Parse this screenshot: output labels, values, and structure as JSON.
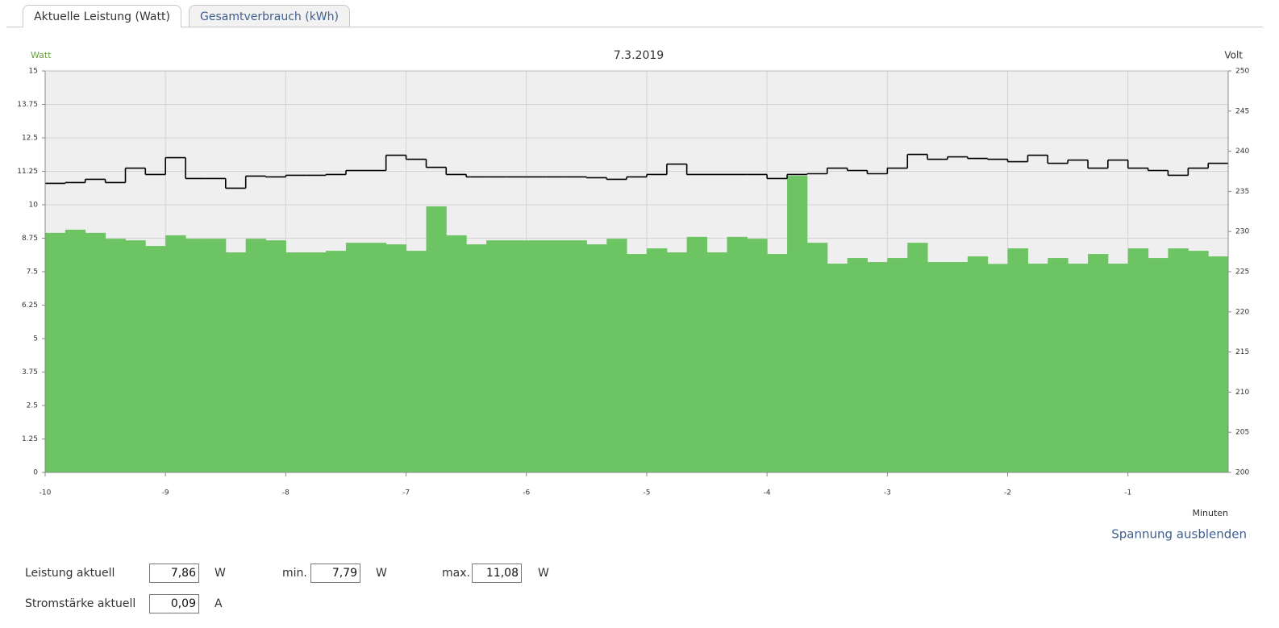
{
  "tabs": [
    "Aktuelle Leistung (Watt)",
    "Gesamtverbrauch (kWh)"
  ],
  "chart_data": {
    "type": "bar",
    "title": "7.3.2019",
    "ylabel": "Watt",
    "y2label": "Volt",
    "xlabel": "Minuten",
    "x": [
      -10,
      -9.833,
      -9.667,
      -9.5,
      -9.333,
      -9.167,
      -9,
      -8.833,
      -8.667,
      -8.5,
      -8.333,
      -8.167,
      -8,
      -7.833,
      -7.667,
      -7.5,
      -7.333,
      -7.167,
      -7,
      -6.833,
      -6.667,
      -6.5,
      -6.333,
      -6.167,
      -6,
      -5.833,
      -5.667,
      -5.5,
      -5.333,
      -5.167,
      -5,
      -4.833,
      -4.667,
      -4.5,
      -4.333,
      -4.167,
      -4,
      -3.833,
      -3.667,
      -3.5,
      -3.333,
      -3.167,
      -3,
      -2.833,
      -2.667,
      -2.5,
      -2.333,
      -2.167,
      -2,
      -1.833,
      -1.667,
      -1.5,
      -1.333,
      -1.167,
      -1,
      -0.833,
      -0.667,
      -0.5,
      -0.333
    ],
    "series": [
      {
        "color": "#6cc462",
        "values": [
          8.95,
          9.07,
          8.95,
          8.73,
          8.67,
          8.46,
          8.86,
          8.73,
          8.73,
          8.22,
          8.73,
          8.67,
          8.22,
          8.22,
          8.28,
          8.58,
          8.58,
          8.52,
          8.28,
          9.94,
          8.86,
          8.52,
          8.67,
          8.67,
          8.67,
          8.67,
          8.67,
          8.52,
          8.73,
          8.16,
          8.37,
          8.22,
          8.8,
          8.22,
          8.8,
          8.73,
          8.16,
          11.08,
          8.58,
          7.8,
          8.01,
          7.86,
          8.01,
          8.58,
          7.86,
          7.86,
          8.07,
          7.79,
          8.37,
          7.8,
          8.01,
          7.8,
          8.16,
          7.8,
          8.37,
          8.01,
          8.37,
          8.28,
          8.07
        ]
      },
      {
        "color": "#000000",
        "type": "line",
        "axis": "y2",
        "values": [
          236.0,
          236.1,
          236.5,
          236.1,
          237.9,
          237.1,
          239.2,
          236.6,
          236.6,
          235.4,
          236.9,
          236.8,
          237.0,
          237.0,
          237.1,
          237.6,
          237.6,
          239.5,
          239.0,
          238.0,
          237.1,
          236.8,
          236.8,
          236.8,
          236.8,
          236.8,
          236.8,
          236.7,
          236.5,
          236.8,
          237.1,
          238.4,
          237.1,
          237.1,
          237.1,
          237.1,
          236.6,
          237.1,
          237.2,
          237.9,
          237.6,
          237.2,
          237.9,
          239.6,
          239.0,
          239.3,
          239.1,
          239.0,
          238.7,
          239.5,
          238.5,
          238.9,
          237.9,
          238.9,
          237.9,
          237.6,
          237.0,
          237.9,
          238.5
        ]
      }
    ],
    "xlim": [
      -10,
      -0.167
    ],
    "xticks": [
      -10,
      -9,
      -8,
      -7,
      -6,
      -5,
      -4,
      -3,
      -2,
      -1
    ],
    "ylim": [
      0,
      15
    ],
    "yticks": [
      0,
      1.25,
      2.5,
      3.75,
      5,
      6.25,
      7.5,
      8.75,
      10,
      11.25,
      12.5,
      13.75,
      15
    ],
    "y2lim": [
      200,
      250
    ],
    "y2ticks": [
      200,
      205,
      210,
      215,
      220,
      225,
      230,
      235,
      240,
      245,
      250
    ],
    "grid": true
  },
  "toggle": "Spannung ausblenden",
  "readings": [
    {
      "label": "Leistung aktuell",
      "value": "7,86",
      "unit": "W"
    },
    {
      "label": "min.",
      "value": "7,79",
      "unit": "W"
    },
    {
      "label": "max.",
      "value": "11,08",
      "unit": "W"
    },
    {
      "label": "Stromstärke aktuell",
      "value": "0,09",
      "unit": "A"
    }
  ]
}
